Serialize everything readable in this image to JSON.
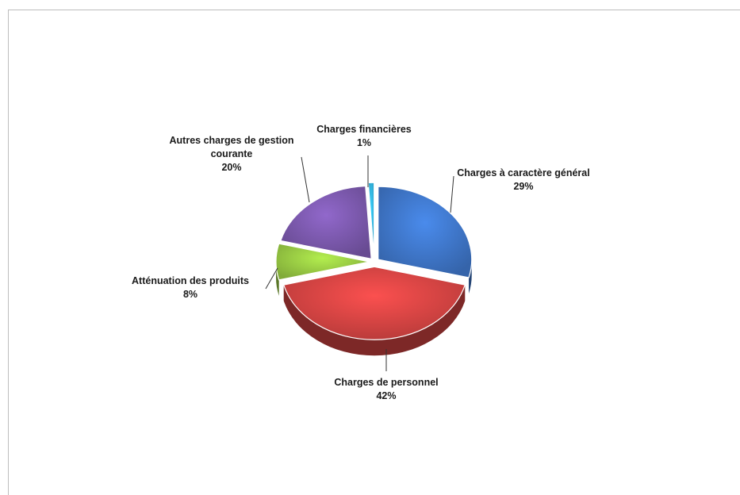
{
  "chart_data": {
    "type": "pie",
    "title": "",
    "slices": [
      {
        "label": "Charges à caractère général",
        "label_lines": [
          "Charges à caractère général"
        ],
        "value": 29,
        "value_label": "29%",
        "color": "#3b6fbd"
      },
      {
        "label": "Charges de personnel",
        "label_lines": [
          "Charges de personnel"
        ],
        "value": 42,
        "value_label": "42%",
        "color": "#c9403f"
      },
      {
        "label": "Atténuation des produits",
        "label_lines": [
          "Atténuation des produits"
        ],
        "value": 8,
        "value_label": "8%",
        "color": "#8fbe3f"
      },
      {
        "label": "Autres charges de gestion courante",
        "label_lines": [
          "Autres charges de gestion",
          "courante"
        ],
        "value": 20,
        "value_label": "20%",
        "color": "#7453a2"
      },
      {
        "label": "Charges financières",
        "label_lines": [
          "Charges financières"
        ],
        "value": 1,
        "value_label": "1%",
        "color": "#2fa9d4"
      }
    ],
    "legend": "none",
    "style": "3d-exploded"
  }
}
